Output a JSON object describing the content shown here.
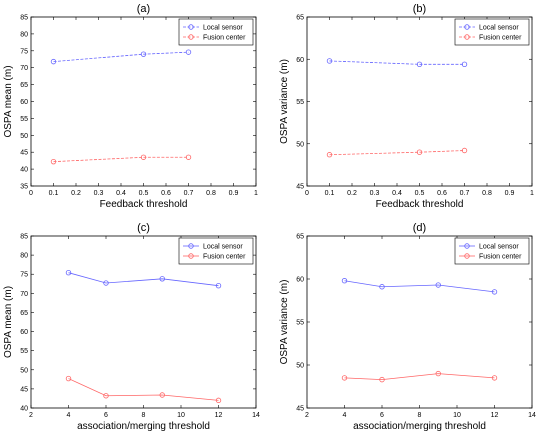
{
  "chart_data": [
    {
      "type": "line",
      "title": "(a)",
      "xlabel": "Feedback threshold",
      "ylabel": "OSPA mean (m)",
      "xlim": [
        0,
        1
      ],
      "ylim": [
        35,
        85
      ],
      "xticks": [
        "0",
        "0.1",
        "0.2",
        "0.3",
        "0.4",
        "0.5",
        "0.6",
        "0.7",
        "0.8",
        "0.9",
        "1"
      ],
      "yticks": [
        "35",
        "40",
        "45",
        "50",
        "55",
        "60",
        "65",
        "70",
        "75",
        "80",
        "85"
      ],
      "grid": false,
      "legend": "top-right",
      "series": [
        {
          "name": "Local sensor",
          "color": "#6666ff",
          "x": [
            0.1,
            0.5,
            0.7
          ],
          "y": [
            71.8,
            74.0,
            74.6
          ]
        },
        {
          "name": "Fusion center",
          "color": "#ff6666",
          "x": [
            0.1,
            0.5,
            0.7
          ],
          "y": [
            42.2,
            43.5,
            43.5
          ]
        }
      ]
    },
    {
      "type": "line",
      "title": "(b)",
      "xlabel": "Feedback threshold",
      "ylabel": "OSPA variance (m)",
      "xlim": [
        0,
        1
      ],
      "ylim": [
        45,
        65
      ],
      "xticks": [
        "0",
        "0.1",
        "0.2",
        "0.3",
        "0.4",
        "0.5",
        "0.6",
        "0.7",
        "0.8",
        "0.9",
        "1"
      ],
      "yticks": [
        "45",
        "50",
        "55",
        "60",
        "65"
      ],
      "grid": false,
      "legend": "top-right",
      "series": [
        {
          "name": "Local sensor",
          "color": "#6666ff",
          "x": [
            0.1,
            0.5,
            0.7
          ],
          "y": [
            59.8,
            59.4,
            59.4
          ]
        },
        {
          "name": "Fusion center",
          "color": "#ff6666",
          "x": [
            0.1,
            0.5,
            0.7
          ],
          "y": [
            48.7,
            49.0,
            49.2
          ]
        }
      ]
    },
    {
      "type": "line",
      "title": "(c)",
      "xlabel": "association/merging threshold",
      "ylabel": "OSPA mean (m)",
      "xlim": [
        2,
        14
      ],
      "ylim": [
        40,
        85
      ],
      "xticks": [
        "2",
        "4",
        "6",
        "8",
        "10",
        "12",
        "14"
      ],
      "yticks": [
        "40",
        "45",
        "50",
        "55",
        "60",
        "65",
        "70",
        "75",
        "80",
        "85"
      ],
      "grid": false,
      "legend": "top-right",
      "series": [
        {
          "name": "Local sensor",
          "color": "#6666ff",
          "x": [
            4,
            6,
            9,
            12
          ],
          "y": [
            75.4,
            72.7,
            73.8,
            72.0
          ]
        },
        {
          "name": "Fusion center",
          "color": "#ff6666",
          "x": [
            4,
            6,
            9,
            12
          ],
          "y": [
            47.7,
            43.2,
            43.4,
            42.0
          ]
        }
      ]
    },
    {
      "type": "line",
      "title": "(d)",
      "xlabel": "association/merging threshold",
      "ylabel": "OSPA variance (m)",
      "xlim": [
        2,
        14
      ],
      "ylim": [
        45,
        65
      ],
      "xticks": [
        "2",
        "4",
        "6",
        "8",
        "10",
        "12",
        "14"
      ],
      "yticks": [
        "45",
        "50",
        "55",
        "60",
        "65"
      ],
      "grid": false,
      "legend": "top-right",
      "series": [
        {
          "name": "Local sensor",
          "color": "#6666ff",
          "x": [
            4,
            6,
            9,
            12
          ],
          "y": [
            59.8,
            59.1,
            59.3,
            58.5
          ]
        },
        {
          "name": "Fusion center",
          "color": "#ff6666",
          "x": [
            4,
            6,
            9,
            12
          ],
          "y": [
            48.5,
            48.3,
            49.0,
            48.5
          ]
        }
      ]
    }
  ]
}
